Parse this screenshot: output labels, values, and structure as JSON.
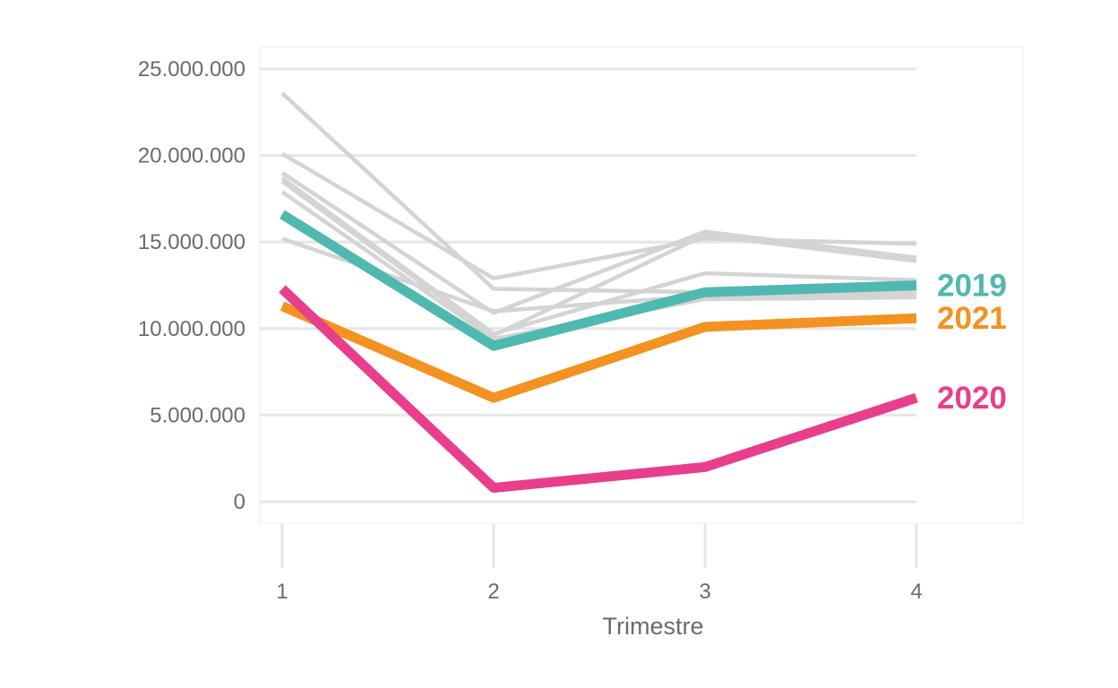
{
  "chart_data": {
    "type": "line",
    "title": "",
    "xlabel": "Trimestre",
    "ylabel": "",
    "x": [
      1,
      2,
      3,
      4
    ],
    "x_tick_labels": [
      "1",
      "2",
      "3",
      "4"
    ],
    "ylim": [
      0,
      25000000
    ],
    "y_ticks": [
      0,
      5000000,
      10000000,
      15000000,
      20000000,
      25000000
    ],
    "y_tick_labels": [
      "0",
      "5.000.000",
      "10.000.000",
      "15.000.000",
      "20.000.000",
      "25.000.000"
    ],
    "grid": true,
    "background_series_color": "#d4d4d4",
    "background_series": [
      {
        "values": [
          23600000,
          12300000,
          12100000,
          12200000
        ]
      },
      {
        "values": [
          20100000,
          12900000,
          15200000,
          14900000
        ]
      },
      {
        "values": [
          19000000,
          10900000,
          15600000,
          14100000
        ]
      },
      {
        "values": [
          18700000,
          9700000,
          13200000,
          12800000
        ]
      },
      {
        "values": [
          17900000,
          9400000,
          11700000,
          11800000
        ]
      },
      {
        "values": [
          15200000,
          11000000,
          11900000,
          12000000
        ]
      },
      {
        "values": [
          18500000,
          9600000,
          15400000,
          13900000
        ]
      }
    ],
    "series": [
      {
        "name": "2019",
        "values": [
          16600000,
          9000000,
          12100000,
          12500000
        ],
        "color": "#4fb8b0"
      },
      {
        "name": "2021",
        "values": [
          11300000,
          6000000,
          10100000,
          10600000
        ],
        "color": "#f39220"
      },
      {
        "name": "2020",
        "values": [
          12300000,
          800000,
          2000000,
          6000000
        ],
        "color": "#e83e8c"
      }
    ]
  }
}
